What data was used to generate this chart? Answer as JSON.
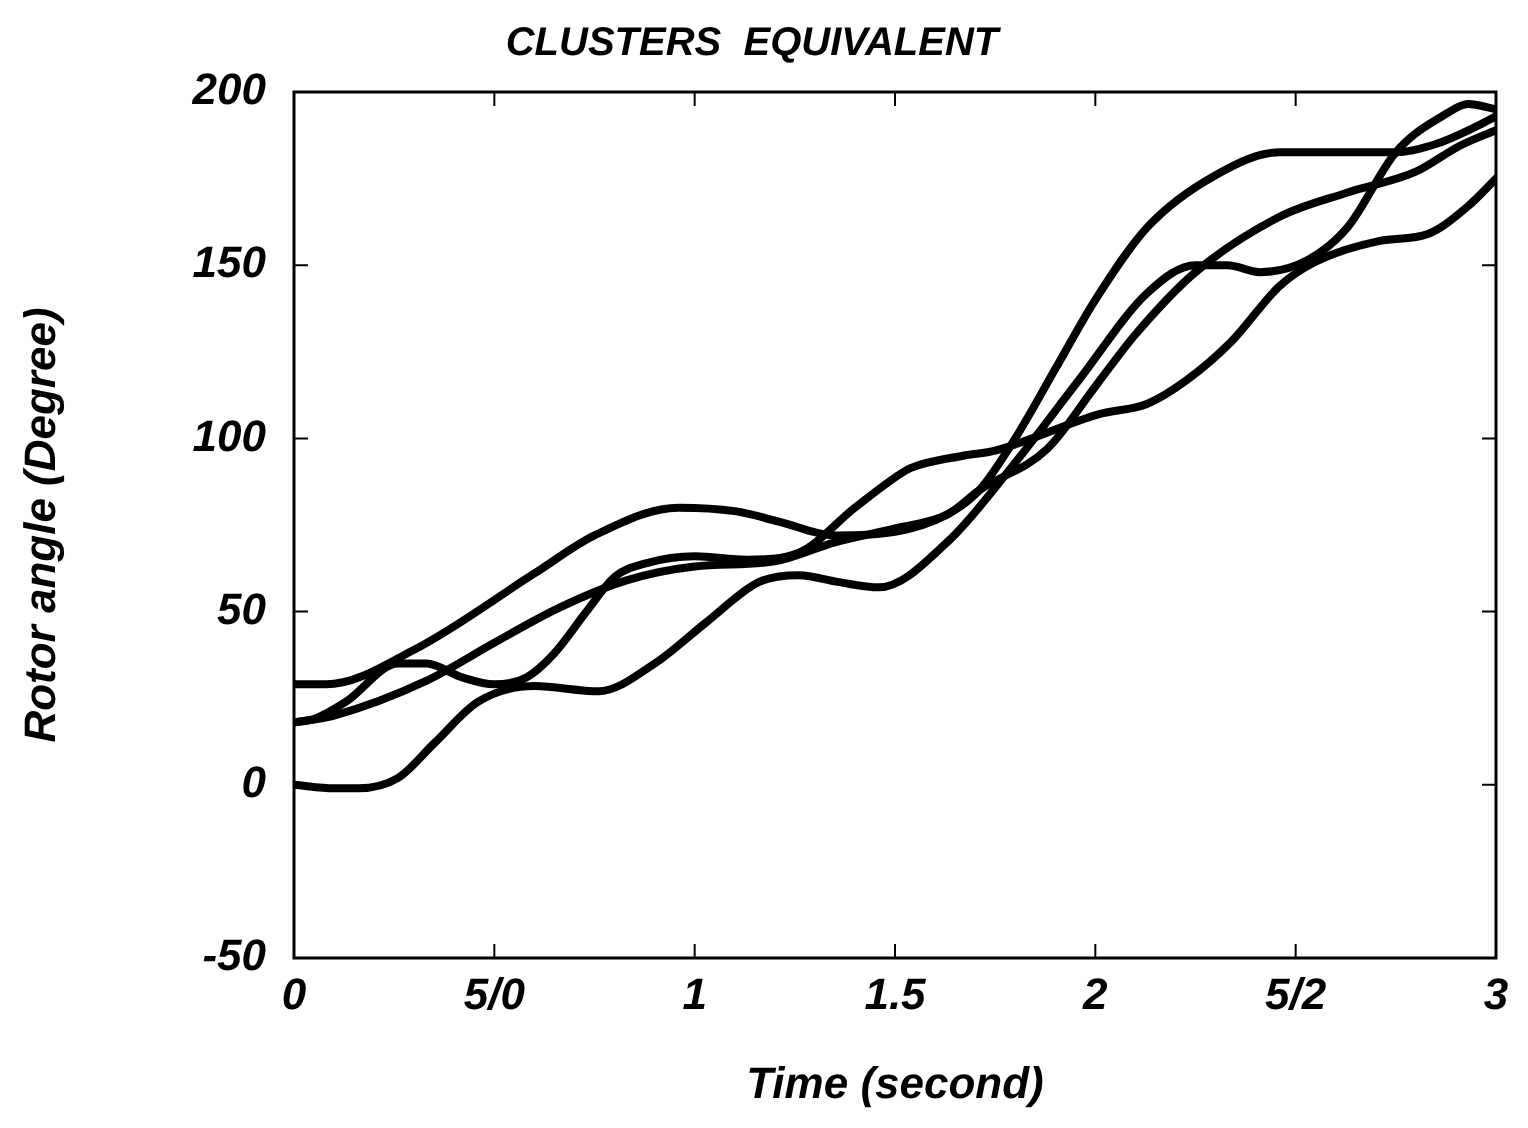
{
  "chart_data": {
    "type": "line",
    "title": "CLUSTERS  EQUIVALENT",
    "xlabel": "Time (second)",
    "ylabel": "Rotor angle (Degree)",
    "xlim": [
      0,
      3
    ],
    "xticks": [
      0,
      {
        "value": 0.5,
        "label": "5/0"
      },
      1,
      1.5,
      2,
      {
        "value": 2.5,
        "label": "5/2"
      },
      3
    ],
    "ylim": [
      -50,
      200
    ],
    "yticks": [
      -50,
      0,
      50,
      100,
      150,
      200
    ],
    "grid": false,
    "legend": false,
    "series": [
      {
        "color": "#000000",
        "x": [
          0,
          0.08,
          0.3,
          0.6,
          0.75,
          0.96,
          1.1,
          1.21,
          1.35,
          1.5,
          1.63,
          1.71,
          1.8,
          1.9,
          2,
          2.13,
          2.3,
          2.46,
          2.75,
          2.85,
          2.95,
          3
        ],
        "values": [
          29,
          29,
          39,
          61,
          72,
          80,
          79,
          76,
          72,
          73,
          78,
          85,
          100,
          120,
          140,
          161,
          176,
          182.6,
          182.6,
          185,
          190,
          193
        ]
      },
      {
        "color": "#000000",
        "x": [
          0,
          0.05,
          0.13,
          0.26,
          0.33,
          0.42,
          0.5,
          0.58,
          0.65,
          0.73,
          0.8,
          0.88,
          1,
          1.13,
          1.26,
          1.4,
          1.51,
          1.54,
          1.67,
          1.75,
          2.01,
          2.13,
          2.23,
          2.34,
          2.46,
          2.55,
          2.71,
          2.83,
          2.93,
          3
        ],
        "values": [
          18,
          19,
          24,
          35,
          35,
          31,
          29,
          31,
          38,
          50,
          60,
          64,
          66,
          65,
          67,
          80,
          89.5,
          91.5,
          95,
          96.5,
          107,
          110,
          117,
          128,
          144,
          151,
          157,
          159,
          167,
          175
        ]
      },
      {
        "color": "#000000",
        "x": [
          0,
          0.1,
          0.33,
          0.5,
          0.66,
          0.83,
          1,
          1.2,
          1.35,
          1.5,
          1.63,
          1.71,
          1.88,
          2,
          2.1,
          2.25,
          2.46,
          2.63,
          2.8,
          2.91,
          3
        ],
        "values": [
          18,
          20,
          30,
          41,
          51,
          59,
          63,
          64.5,
          70,
          74,
          78,
          85,
          97,
          115,
          130,
          148,
          164,
          171,
          177,
          184.5,
          189
        ]
      },
      {
        "color": "#000000",
        "x": [
          0,
          0.1,
          0.16,
          0.26,
          0.35,
          0.46,
          0.6,
          0.76,
          0.9,
          1.03,
          1.16,
          1.26,
          1.36,
          1.46,
          1.63,
          1.8,
          1.96,
          2.13,
          2.25,
          2.33,
          2.41,
          2.53,
          2.63,
          2.75,
          2.88,
          2.93,
          3
        ],
        "values": [
          0,
          -1,
          -1,
          2,
          12,
          24,
          28.5,
          27,
          35,
          47,
          58.5,
          60.5,
          58.5,
          57,
          70,
          93,
          117,
          142,
          150,
          150,
          148,
          151.5,
          161,
          182.6,
          194,
          196.5,
          195
        ]
      }
    ]
  }
}
